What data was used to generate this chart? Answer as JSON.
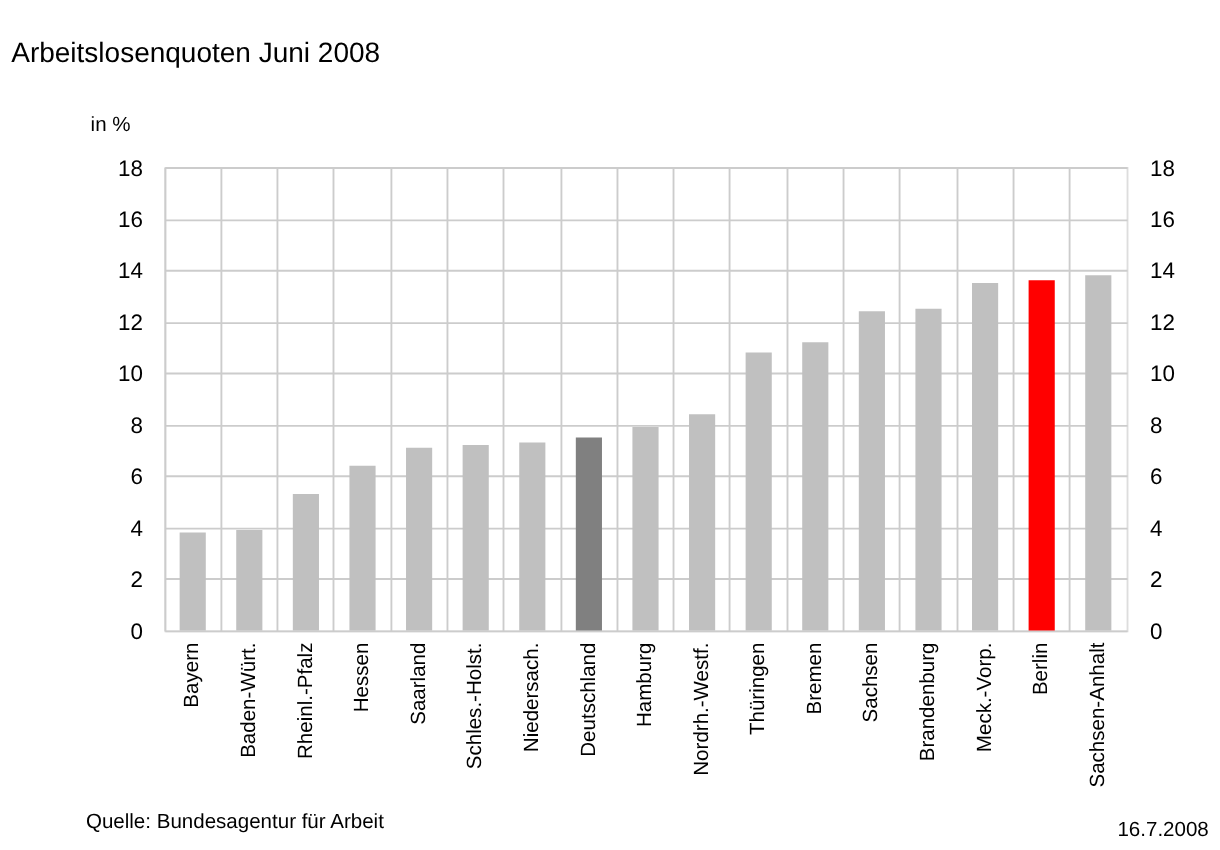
{
  "chart_data": {
    "type": "bar",
    "title": "Arbeitslosenquoten Juni 2008",
    "ylabel": "in %",
    "categories": [
      "Bayern",
      "Baden-Würt.",
      "Rheinl.-Pfalz",
      "Hessen",
      "Saarland",
      "Schles.-Holst.",
      "Niedersach.",
      "Deutschland",
      "Hamburg",
      "Nordrh.-Westf.",
      "Thüringen",
      "Bremen",
      "Sachsen",
      "Brandenburg",
      "Meck.-Vorp.",
      "Berlin",
      "Sachsen-Anhalt"
    ],
    "values": [
      3.8,
      3.9,
      5.3,
      6.4,
      7.1,
      7.2,
      7.3,
      7.5,
      7.9,
      8.4,
      10.8,
      11.2,
      12.4,
      12.5,
      13.5,
      13.6,
      13.8
    ],
    "colors": [
      "#c0c0c0",
      "#c0c0c0",
      "#c0c0c0",
      "#c0c0c0",
      "#c0c0c0",
      "#c0c0c0",
      "#c0c0c0",
      "#808080",
      "#c0c0c0",
      "#c0c0c0",
      "#c0c0c0",
      "#c0c0c0",
      "#c0c0c0",
      "#c0c0c0",
      "#c0c0c0",
      "#ff0000",
      "#c0c0c0"
    ],
    "ylim": [
      0,
      18
    ],
    "yticks": [
      0,
      2,
      4,
      6,
      8,
      10,
      12,
      14,
      16,
      18
    ],
    "y2lim": [
      0,
      18
    ],
    "y2ticks": [
      0,
      2,
      4,
      6,
      8,
      10,
      12,
      14,
      16,
      18
    ],
    "grid": true,
    "annotations": [
      "Quelle: Bundesagentur für Arbeit",
      "16.7.2008"
    ]
  }
}
